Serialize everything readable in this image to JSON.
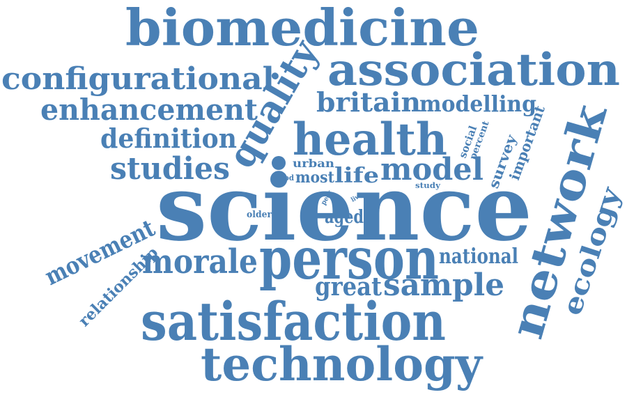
{
  "colors": {
    "word": "#4a80b5",
    "background": "#ffffff"
  },
  "words": {
    "biomedicine": "biomedicine",
    "association": "association",
    "configurational": "configurational",
    "quality": "quality",
    "enhancement": "enhancement",
    "britain": "britain",
    "modelling": "modelling",
    "definition": "definition",
    "health": "health",
    "studies": "studies",
    "urban": "urban",
    "good": "good",
    "most": "most",
    "life": "life",
    "model": "model",
    "social": "social",
    "percent": "percent",
    "survey": "survey",
    "important": "important",
    "network": "network",
    "science": "science",
    "study": "study",
    "peer": "peer",
    "live": "live",
    "older": "older",
    "aged": "aged",
    "ecology": "ecology",
    "movement": "movement",
    "relationship": "relationship",
    "morale": "morale",
    "person": "person",
    "national": "national",
    "great": "great",
    "sample": "sample",
    "satisfaction": "satisfaction",
    "technology": "technology"
  }
}
